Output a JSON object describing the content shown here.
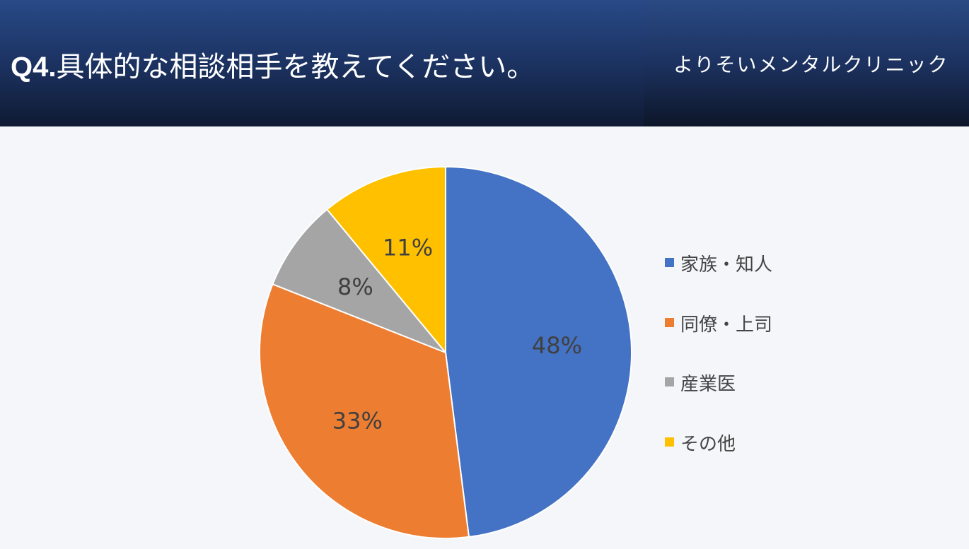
{
  "header": {
    "question_number": "Q4.",
    "question_text": "具体的な相談相手を教えてください。",
    "brand": "よりそいメンタルクリニック"
  },
  "chart_data": {
    "type": "pie",
    "categories": [
      "家族・知人",
      "同僚・上司",
      "産業医",
      "その他"
    ],
    "values": [
      48,
      33,
      8,
      11
    ],
    "labels": [
      "48%",
      "33%",
      "8%",
      "11%"
    ],
    "colors": [
      "#4472c4",
      "#ed7d31",
      "#a5a5a5",
      "#ffc000"
    ],
    "start": "12 o'clock",
    "direction": "clockwise",
    "legend_position": "right"
  }
}
